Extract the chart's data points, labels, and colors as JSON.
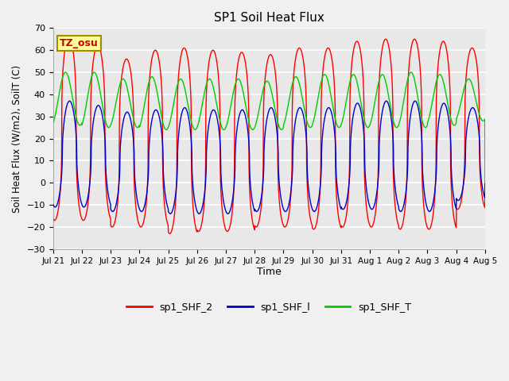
{
  "title": "SP1 Soil Heat Flux",
  "ylabel": "Soil Heat Flux (W/m2), SoilT (C)",
  "xlabel": "Time",
  "ylim": [
    -30,
    70
  ],
  "yticks": [
    -30,
    -20,
    -10,
    0,
    10,
    20,
    30,
    40,
    50,
    60,
    70
  ],
  "x_tick_labels": [
    "Jul 21",
    "Jul 22",
    "Jul 23",
    "Jul 24",
    "Jul 25",
    "Jul 26",
    "Jul 27",
    "Jul 28",
    "Jul 29",
    "Jul 30",
    "Jul 31",
    "Aug 1",
    "Aug 2",
    "Aug 3",
    "Aug 4",
    "Aug 5"
  ],
  "background_color": "#e8e8e8",
  "fig_background": "#f0f0f0",
  "grid_color": "#ffffff",
  "line_colors": {
    "sp1_SHF_2": "#ff0000",
    "sp1_SHF_1": "#0000cc",
    "sp1_SHF_T": "#00cc00"
  },
  "tz_label": "TZ_osu",
  "tz_box_color": "#ffff99",
  "tz_border_color": "#aa8800",
  "n_days": 15,
  "shf2_peaks": [
    66,
    62,
    56,
    60,
    61,
    60,
    59,
    58,
    61,
    61,
    64,
    65,
    65,
    64,
    61
  ],
  "shf2_troughs": [
    -17,
    -17,
    -20,
    -20,
    -23,
    -22,
    -22,
    -20,
    -20,
    -21,
    -20,
    -20,
    -21,
    -21,
    -12
  ],
  "shf1_peaks": [
    37,
    35,
    32,
    33,
    34,
    33,
    33,
    34,
    34,
    34,
    36,
    37,
    37,
    36,
    34
  ],
  "shf1_troughs": [
    -11,
    -11,
    -13,
    -13,
    -14,
    -14,
    -14,
    -13,
    -13,
    -13,
    -12,
    -12,
    -13,
    -13,
    -8
  ],
  "shfT_peaks": [
    50,
    50,
    47,
    48,
    47,
    47,
    47,
    46,
    48,
    49,
    49,
    49,
    50,
    49,
    47
  ],
  "shfT_troughs": [
    26,
    25,
    25,
    24,
    24,
    24,
    24,
    24,
    25,
    25,
    25,
    25,
    25,
    26,
    28
  ],
  "shf2_phase": 0.3,
  "shf1_phase": 0.32,
  "shfT_phase": 0.18,
  "shf2_sharpness": 3.0,
  "shf1_sharpness": 2.0,
  "shfT_sharpness": 1.0
}
